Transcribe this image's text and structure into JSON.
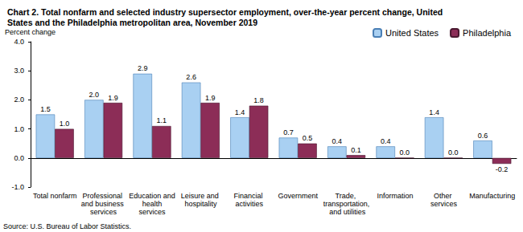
{
  "chart_data": {
    "type": "bar",
    "title": "Chart 2. Total nonfarm and selected industry supersector employment, over-the-year percent change, United States and the Philadelphia metropolitan area, November 2019",
    "ylabel": "Percent change",
    "source": "Source: U.S. Bureau of Labor Statistics.",
    "categories": [
      "Total nonfarm",
      "Professional and business services",
      "Education and health services",
      "Leisure and hospitality",
      "Financial activities",
      "Government",
      "Trade, transportation, and utilities",
      "Information",
      "Other services",
      "Manufacturing"
    ],
    "series": [
      {
        "name": "United States",
        "color": "#a9d0f2",
        "values": [
          1.5,
          2.0,
          2.9,
          2.6,
          1.4,
          0.7,
          0.4,
          0.4,
          1.4,
          0.6
        ],
        "value_labels": [
          "1.5",
          "2.0",
          "2.9",
          "2.6",
          "1.4",
          "0.7",
          "0.4",
          "0.4",
          "1.4",
          "0.6"
        ]
      },
      {
        "name": "Philadelphia",
        "color": "#8c2d57",
        "values": [
          1.0,
          1.9,
          1.1,
          1.9,
          1.8,
          0.5,
          0.1,
          0.0,
          0.0,
          -0.2
        ],
        "value_labels": [
          "1.0",
          "1.9",
          "1.1",
          "1.9",
          "1.8",
          "0.5",
          "0.1",
          "0.0",
          "0.0",
          "-0.2"
        ]
      }
    ],
    "ylim": [
      -1,
      4
    ],
    "yticks": [
      {
        "value": -1,
        "label": "-1.0"
      },
      {
        "value": 0,
        "label": "0.0"
      },
      {
        "value": 1,
        "label": "1.0"
      },
      {
        "value": 2,
        "label": "2.0"
      },
      {
        "value": 3,
        "label": "3.0"
      },
      {
        "value": 4,
        "label": "4.0"
      }
    ],
    "grid": false,
    "legend": "top-right",
    "data_labels": true
  }
}
